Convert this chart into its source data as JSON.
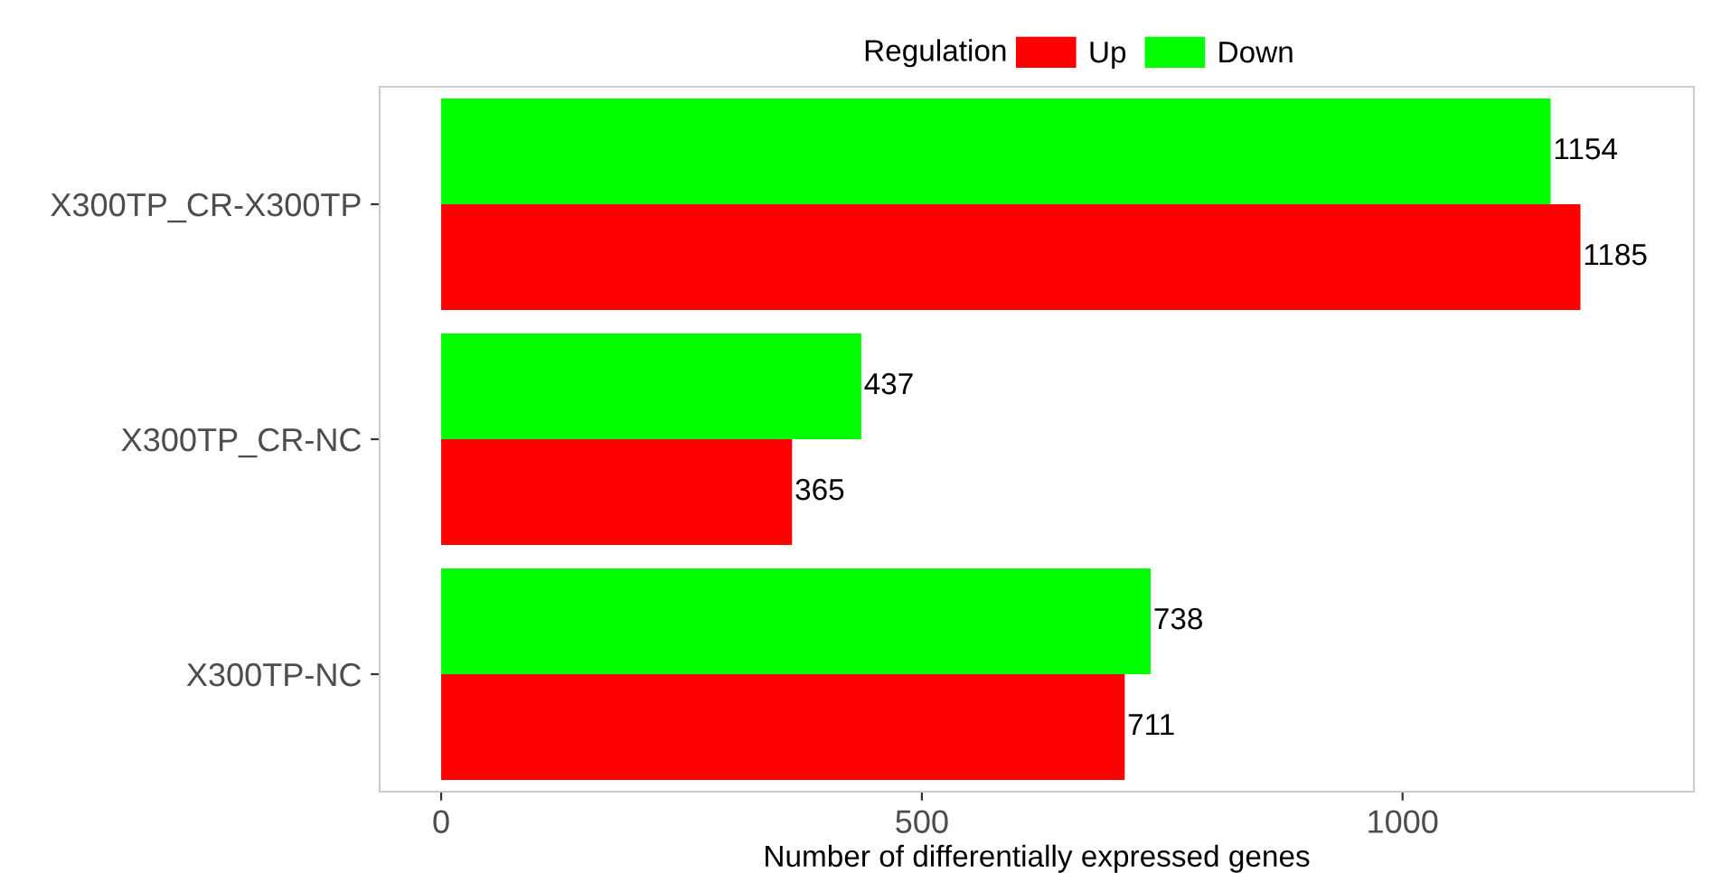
{
  "chart_data": {
    "type": "bar",
    "orientation": "horizontal",
    "xlabel": "Number of differentially expressed genes",
    "legend_title": "Regulation",
    "legend": "top",
    "categories": [
      "X300TP_CR-X300TP",
      "X300TP_CR-NC",
      "X300TP-NC"
    ],
    "series": [
      {
        "name": "Up",
        "color": "#ff0000",
        "values": [
          1185,
          365,
          711
        ]
      },
      {
        "name": "Down",
        "color": "#00ff00",
        "values": [
          1154,
          437,
          738
        ]
      }
    ],
    "xlim": [
      -64,
      1303
    ],
    "xticks": [
      0,
      500,
      1000
    ],
    "grid": false,
    "data_labels": true
  }
}
